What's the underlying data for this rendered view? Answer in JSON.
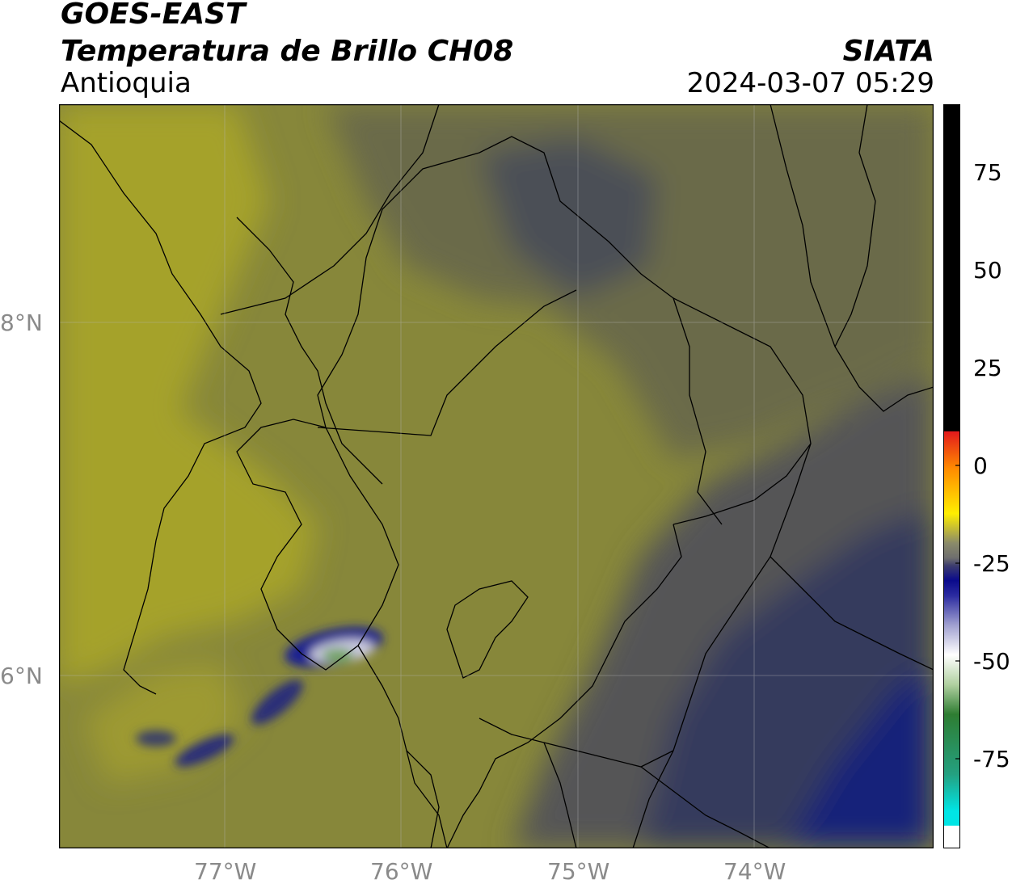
{
  "header": {
    "title_line1": "GOES-EAST",
    "title_line2": "Temperatura de Brillo CH08",
    "region": "Antioquia",
    "organization": "SIATA",
    "datetime": "2024-03-07 05:29"
  },
  "map": {
    "lat_labels": [
      "8°N",
      "6°N"
    ],
    "lon_labels": [
      "77°W",
      "76°W",
      "75°W",
      "74°W"
    ],
    "lat_range": [
      5.0,
      9.2
    ],
    "lon_range": [
      -78.0,
      -73.0
    ],
    "gridlines": true,
    "colors": {
      "warm_yellow_olive": "#a5a22b",
      "olive": "#87873a",
      "dark_olive": "#6b6b4a",
      "slate": "#545556",
      "navy_gray": "#353a5d",
      "navy": "#14207a",
      "deep_navy": "#0a1a8f"
    }
  },
  "colorbar": {
    "tick_labels": [
      "75",
      "50",
      "25",
      "0",
      "-25",
      "-50",
      "-75"
    ],
    "tick_values": [
      75,
      50,
      25,
      0,
      -25,
      -50,
      -75
    ],
    "range": [
      -95,
      92
    ],
    "colors": {
      "hot": "#000000",
      "red": "#e31a1c",
      "orange": "#ff8c00",
      "yellow": "#ffee00",
      "gray": "#6e6e6e",
      "navy": "#0a0a8c",
      "white": "#ffffff",
      "green": "#2e7d32",
      "cyan": "#00e5e5"
    }
  }
}
